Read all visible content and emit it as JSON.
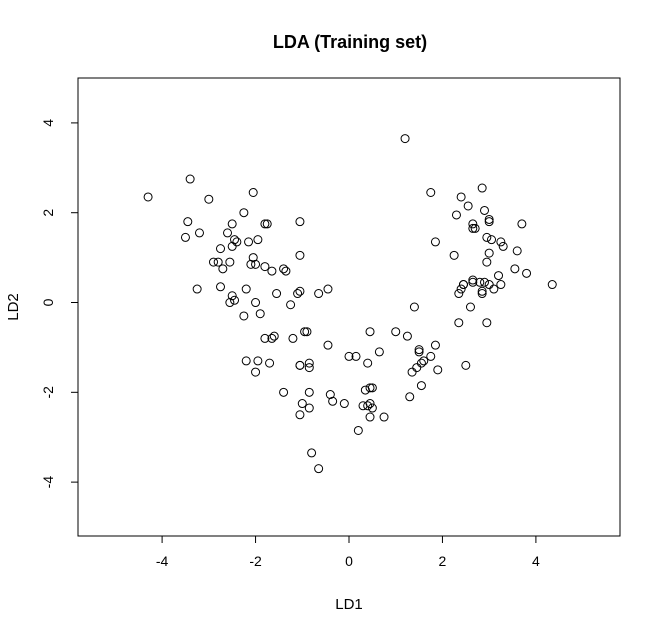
{
  "chart_data": {
    "type": "scatter",
    "title": "LDA (Training set)",
    "xlabel": "LD1",
    "ylabel": "LD2",
    "xlim": [
      -5.8,
      5.8
    ],
    "ylim": [
      -5.2,
      5.0
    ],
    "xticks": [
      -4,
      -2,
      0,
      2,
      4
    ],
    "yticks": [
      -4,
      -2,
      0,
      2,
      4
    ],
    "xtick_labels": [
      "-4",
      "-2",
      "0",
      "2",
      "4"
    ],
    "ytick_labels": [
      "-4",
      "-2",
      "0",
      "2",
      "4"
    ],
    "grid": false,
    "marker": "open-circle",
    "marker_color": "#000000",
    "series": [
      {
        "x": [
          -4.3,
          -3.4,
          -3.45,
          -3.5,
          -3.2,
          -3.25,
          -3.0,
          -2.9,
          -2.75,
          -2.6,
          -2.5,
          -2.45,
          -2.4,
          -2.55,
          -2.7,
          -2.8,
          -2.5,
          -2.45,
          -2.2,
          -2.05,
          -2.1,
          -2.0,
          -2.15,
          -1.95,
          -2.05,
          -1.8,
          -1.75,
          -1.8,
          -1.65,
          -1.55,
          -1.4,
          -1.35,
          -1.05,
          -1.25,
          -1.1,
          -1.05,
          -1.05,
          -0.65,
          -0.45,
          -0.95,
          -1.9,
          -1.65,
          -2.25,
          -2.55,
          -2.75,
          -2.5,
          -2.25,
          -2.0,
          -1.8,
          -1.6,
          -1.95,
          -1.7,
          -2.2,
          -2.0,
          -1.4,
          -1.2,
          -1.05,
          -1.05,
          -0.9,
          -0.85,
          -0.85,
          -0.85,
          -0.8,
          -0.45,
          -0.4,
          -1.0,
          -1.05,
          -0.85,
          -0.65,
          -0.35,
          -0.1,
          0.0,
          0.15,
          0.4,
          0.45,
          0.5,
          0.4,
          0.45,
          0.45,
          0.5,
          0.35,
          0.3,
          0.2,
          0.65,
          0.75,
          0.45,
          1.0,
          1.25,
          1.4,
          1.5,
          1.45,
          1.55,
          1.6,
          1.75,
          1.5,
          1.55,
          1.9,
          1.85,
          1.3,
          1.35,
          1.2,
          1.75,
          1.85,
          2.25,
          2.3,
          2.4,
          2.55,
          2.65,
          2.65,
          2.85,
          2.9,
          2.95,
          3.0,
          3.0,
          3.05,
          3.25,
          3.3,
          3.0,
          2.95,
          3.7,
          3.6,
          3.55,
          3.8,
          4.35,
          2.45,
          2.4,
          2.35,
          2.35,
          2.5,
          2.65,
          2.65,
          2.8,
          2.85,
          2.9,
          2.85,
          3.0,
          3.1,
          3.2,
          2.95,
          3.25,
          2.45,
          2.6,
          2.7
        ],
        "y": [
          2.35,
          2.75,
          1.8,
          1.45,
          1.55,
          0.3,
          2.3,
          0.9,
          0.35,
          1.55,
          1.75,
          1.4,
          1.35,
          0.9,
          0.75,
          0.9,
          0.15,
          0.05,
          0.3,
          1.0,
          0.85,
          0.85,
          1.35,
          1.4,
          2.45,
          1.75,
          1.75,
          0.8,
          0.7,
          0.2,
          0.75,
          0.7,
          1.8,
          -0.05,
          0.2,
          0.25,
          1.05,
          0.2,
          0.3,
          -0.65,
          -0.25,
          -0.8,
          -0.3,
          0.0,
          1.2,
          1.25,
          2.0,
          0.0,
          -0.8,
          -0.75,
          -1.3,
          -1.35,
          -1.3,
          -1.55,
          -2.0,
          -0.8,
          -1.4,
          -1.4,
          -0.65,
          -1.35,
          -1.45,
          -2.0,
          -3.35,
          -0.95,
          -2.05,
          -2.25,
          -2.5,
          -2.35,
          -3.7,
          -2.2,
          -2.25,
          -1.2,
          -1.2,
          -1.35,
          -1.9,
          -1.9,
          -2.3,
          -2.55,
          -2.25,
          -2.35,
          -1.95,
          -2.3,
          -2.85,
          -1.1,
          -2.55,
          -0.65,
          -0.65,
          -0.75,
          -0.1,
          -1.1,
          -1.45,
          -1.35,
          -1.3,
          -1.2,
          -1.05,
          -1.85,
          -1.5,
          -0.95,
          -2.1,
          -1.55,
          3.65,
          2.45,
          1.35,
          1.05,
          1.95,
          2.35,
          2.15,
          1.65,
          1.75,
          2.55,
          2.05,
          1.45,
          1.8,
          1.85,
          1.4,
          1.35,
          1.25,
          1.1,
          0.9,
          1.75,
          1.15,
          0.75,
          0.65,
          0.4,
          0.4,
          0.3,
          0.2,
          -0.45,
          -1.4,
          0.45,
          0.5,
          0.45,
          0.2,
          0.45,
          0.25,
          0.4,
          0.3,
          0.6,
          -0.45,
          0.4,
          0.4,
          -0.1,
          1.65
        ]
      }
    ]
  }
}
